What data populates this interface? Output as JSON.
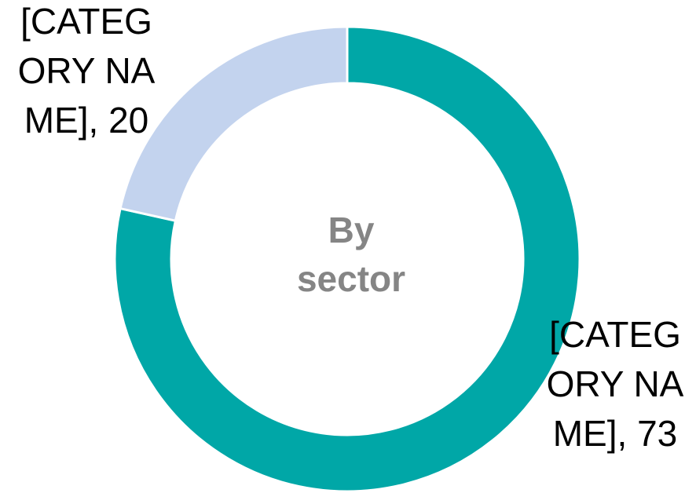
{
  "chart_data": {
    "type": "donut",
    "center_text": "By sector",
    "categories": [
      "[CATEGORY NAME]",
      "[CATEGORY NAME]"
    ],
    "values": [
      73,
      20
    ],
    "value_labels": [
      "[CATEGORY NAME], 73",
      "[CATEGORY NAME], 20"
    ],
    "colors": [
      "#00a7a7",
      "#c3d3ee"
    ]
  }
}
